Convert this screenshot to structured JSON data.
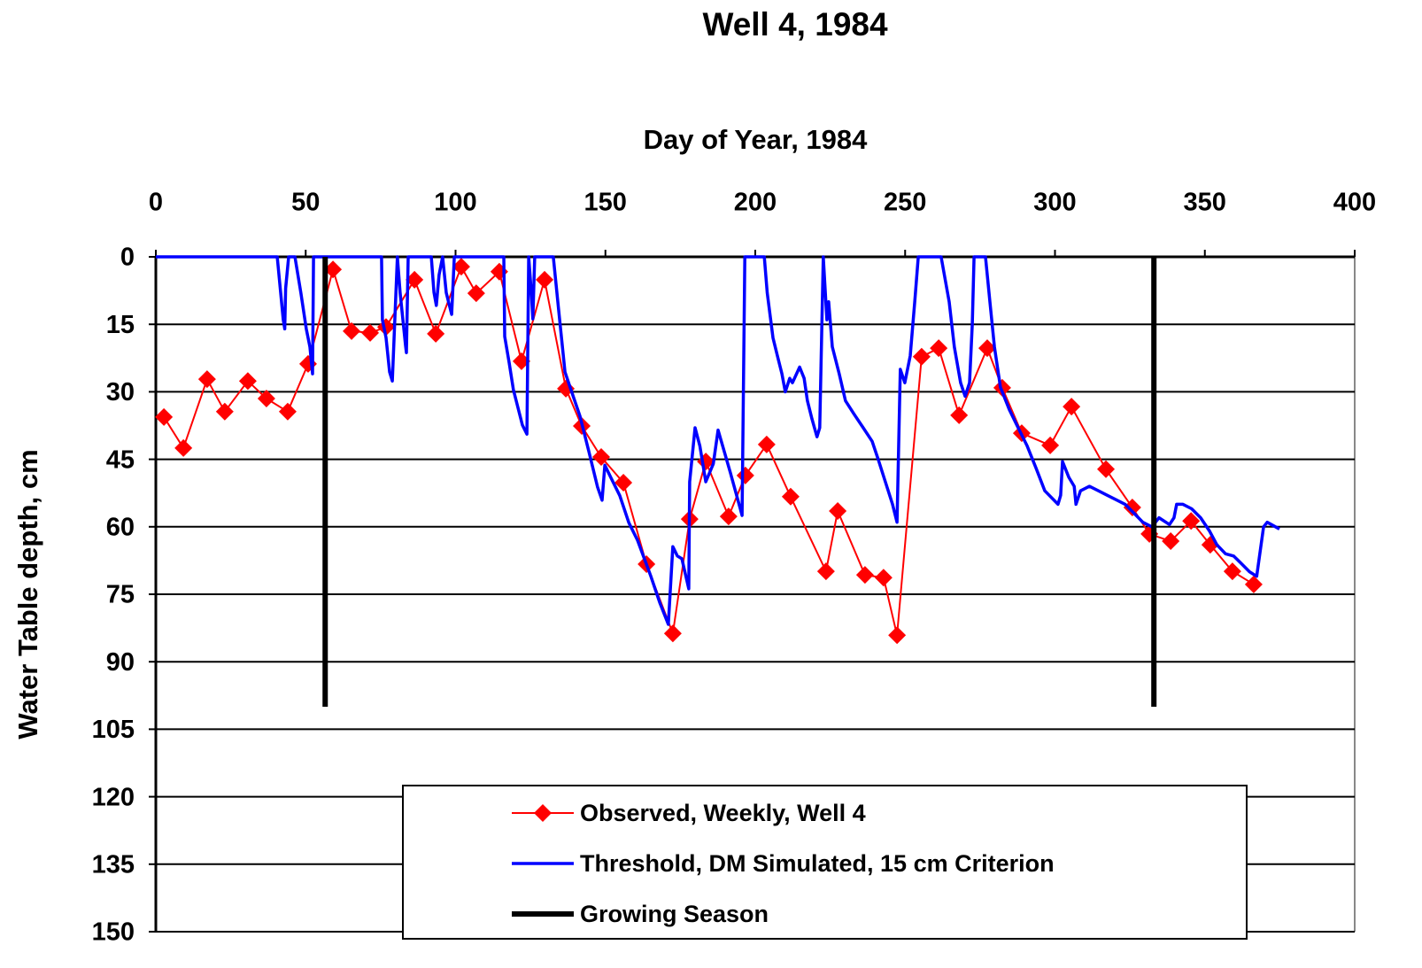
{
  "chart_data": {
    "type": "line",
    "title": "Well 4, 1984",
    "x_label": "Day of Year, 1984",
    "y_label": "Water Table depth, cm",
    "xaxis_position": "top",
    "xlim": [
      0,
      400
    ],
    "xticks": [
      0,
      50,
      100,
      150,
      200,
      250,
      300,
      350,
      400
    ],
    "ylim": [
      150,
      0
    ],
    "yticks": [
      0,
      15,
      30,
      45,
      60,
      75,
      90,
      105,
      120,
      135,
      150
    ],
    "grid": true,
    "legend": "bottom",
    "series": [
      {
        "name": "Observed, Weekly, Well 4",
        "color": "#ff0000",
        "marker": "diamond",
        "x": [
          2.7,
          9.2,
          17.1,
          23,
          30.7,
          36.9,
          44,
          50.8,
          59.1,
          65.3,
          71.5,
          76.8,
          86.3,
          93.4,
          101.9,
          106.9,
          114.6,
          122,
          129.7,
          136.8,
          142.1,
          148.6,
          156,
          163.7,
          172.5,
          178.1,
          183.5,
          191.1,
          196.7,
          203.8,
          211.8,
          223.6,
          227.5,
          236.6,
          242.8,
          247.3,
          255.5,
          261.2,
          268,
          277.4,
          282.4,
          288.9,
          298.4,
          305.5,
          317,
          325.8,
          331.5,
          338.6,
          345.4,
          351.8,
          359.2,
          366.3
        ],
        "values": [
          35.6,
          42.5,
          27.2,
          34.4,
          27.6,
          31.5,
          34.4,
          23.8,
          2.8,
          16.5,
          16.9,
          15.6,
          5.1,
          17.1,
          2.2,
          8.1,
          3.3,
          23.2,
          5.1,
          29.3,
          37.6,
          44.5,
          50.2,
          68.3,
          83.7,
          58.3,
          45.5,
          57.7,
          48.6,
          41.7,
          53.3,
          69.9,
          56.5,
          70.7,
          71.3,
          84.1,
          22.2,
          20.3,
          35.2,
          20.3,
          29.1,
          39.2,
          41.9,
          33.3,
          47.2,
          55.7,
          61.6,
          63.2,
          58.7,
          64,
          69.9,
          72.8
        ]
      },
      {
        "name": "Threshold, DM Simulated, 15 cm Criterion",
        "color": "#0000ff",
        "marker": "none",
        "x": [
          0,
          40.5,
          42.5,
          43,
          43.3,
          44.3,
          46.4,
          48.4,
          50.2,
          51.4,
          52.3,
          52.6,
          75.3,
          75.6,
          76.8,
          78,
          78.9,
          80.6,
          81.5,
          83.3,
          83.6,
          84.2,
          91.9,
          92.8,
          93.6,
          94.5,
          95.7,
          96.9,
          98.7,
          99.6,
          116.1,
          116.4,
          117.9,
          119.3,
          122.3,
          123.8,
          124.4,
          125.3,
          125.8,
          126.4,
          132.6,
          134.1,
          135.3,
          136.5,
          138.5,
          141.5,
          144.5,
          147.4,
          148.9,
          149.8,
          151.9,
          154.8,
          157.8,
          160.7,
          165.1,
          168.1,
          171,
          172.5,
          174,
          175.5,
          177.8,
          178.1,
          179.9,
          181.5,
          183.5,
          186,
          187.6,
          191.7,
          195,
          195.6,
          196.5,
          203,
          204,
          205.9,
          207.4,
          208.9,
          210,
          211.5,
          212.4,
          214.8,
          216.3,
          217.4,
          218.9,
          220.6,
          221.5,
          222.7,
          223.9,
          224.5,
          225.7,
          228,
          230.1,
          233,
          236,
          239,
          241,
          243.4,
          245.8,
          247.3,
          248.4,
          249.9,
          251.7,
          253.2,
          254.4,
          262,
          264.7,
          266.4,
          268.5,
          270,
          271.5,
          272.4,
          273,
          276.8,
          278.3,
          279.8,
          281.8,
          284.8,
          287.7,
          290.7,
          293.7,
          296.6,
          301,
          301.9,
          302.5,
          304.6,
          306.4,
          307,
          308.5,
          311.5,
          314.5,
          317.4,
          320.4,
          323.4,
          326.4,
          329.3,
          332.3,
          334.7,
          338.2,
          339.7,
          340.6,
          342.7,
          345.6,
          348.6,
          351.6,
          354,
          356.9,
          359.6,
          361.9,
          364.9,
          367.3,
          369.6,
          370.8,
          374.9
        ],
        "values": [
          0,
          0,
          14,
          16,
          7,
          0,
          0,
          8,
          16,
          20,
          26,
          0,
          0,
          14,
          18,
          25.6,
          27.6,
          0,
          8,
          19.7,
          21.3,
          0,
          0,
          7.9,
          10.8,
          4,
          0,
          8,
          12.8,
          0,
          0,
          17.7,
          23.6,
          29.5,
          37.4,
          39.4,
          0,
          8,
          13.8,
          0,
          0,
          9.8,
          17.7,
          25.6,
          29.5,
          35.4,
          43.3,
          51.2,
          54.1,
          46.3,
          49.2,
          53.1,
          59.1,
          63,
          70.9,
          76.8,
          81.7,
          64.4,
          66.5,
          67.1,
          73.8,
          50,
          38,
          42,
          50,
          46,
          38.5,
          48,
          56,
          57.5,
          0,
          0,
          8,
          18,
          22,
          26,
          30,
          27,
          28,
          24.5,
          27,
          32,
          36,
          40,
          38,
          0,
          14,
          10,
          20,
          26,
          32,
          35,
          38,
          41,
          45,
          50,
          55,
          59,
          25,
          28,
          22,
          10,
          0,
          0,
          10,
          20,
          28,
          31,
          28,
          15,
          0,
          0,
          10,
          20,
          29,
          34,
          38,
          42,
          47,
          52,
          55,
          53,
          45.5,
          49,
          51,
          55,
          52,
          51,
          52,
          53,
          54,
          55,
          57,
          59,
          60,
          58,
          59.5,
          58,
          55,
          55,
          56,
          58,
          61,
          64,
          66,
          66.5,
          68,
          70,
          71,
          60,
          59,
          60.5
        ]
      },
      {
        "name": "Growing Season",
        "color": "#000000",
        "marker": "none",
        "style": "segments",
        "x": [
          56.5,
          56.5,
          333,
          333
        ],
        "values": [
          0,
          100,
          0,
          100
        ]
      }
    ]
  }
}
